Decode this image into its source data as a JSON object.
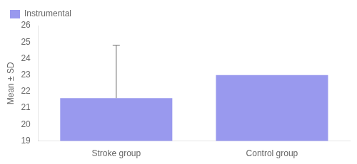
{
  "chart_data": {
    "type": "bar",
    "categories": [
      "Stroke group",
      "Control group"
    ],
    "series": [
      {
        "name": "Instrumental",
        "color": "#9999ee",
        "values": [
          21.6,
          23.0
        ]
      }
    ],
    "errors": [
      3.2,
      null
    ],
    "ylabel": "Mean ± SD",
    "ylim": [
      19,
      26
    ],
    "yticks": [
      19,
      20,
      21,
      22,
      23,
      24,
      25,
      26
    ],
    "grid": false,
    "legend": "upper left"
  }
}
